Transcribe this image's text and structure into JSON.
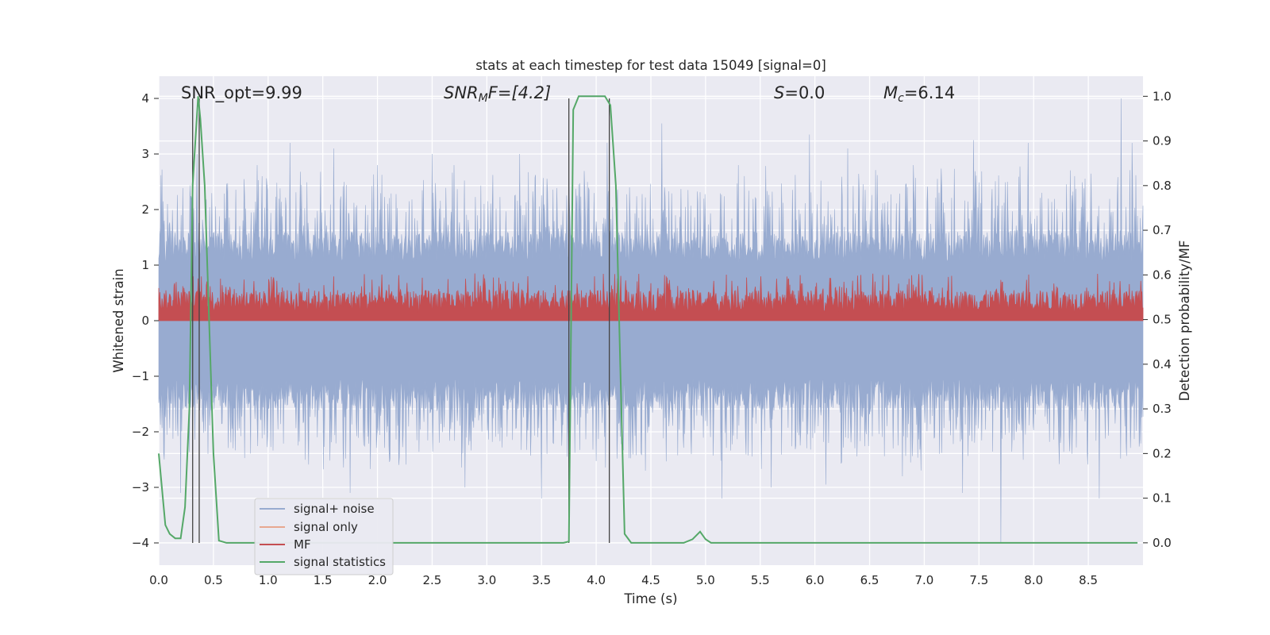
{
  "chart_data": {
    "type": "line",
    "title": "stats at each timestep for test data 15049 [signal=0]",
    "xlabel": "Time (s)",
    "ylabel": "Whitened strain",
    "y2label": "Detection probability/MF",
    "xlim": [
      0,
      9.0
    ],
    "ylim": [
      -4.4,
      4.4
    ],
    "y2lim": [
      -0.05,
      1.045
    ],
    "grid": true,
    "x_ticks": [
      "0.0",
      "0.5",
      "1.0",
      "1.5",
      "2.0",
      "2.5",
      "3.0",
      "3.5",
      "4.0",
      "4.5",
      "5.0",
      "5.5",
      "6.0",
      "6.5",
      "7.0",
      "7.5",
      "8.0",
      "8.5"
    ],
    "y_ticks": [
      "4",
      "3",
      "2",
      "1",
      "0",
      "−1",
      "−2",
      "−3",
      "−4"
    ],
    "y2_ticks": [
      "1.0",
      "0.9",
      "0.8",
      "0.7",
      "0.6",
      "0.5",
      "0.4",
      "0.3",
      "0.2",
      "0.1",
      "0.0"
    ],
    "annotations": {
      "snr_opt": "SNR_opt=9.99",
      "snr_mf_base": "SNR",
      "snr_mf_sub": "M",
      "snr_mf_rest": "F=[4.2]",
      "s_italic": "S",
      "s_rest": "=0.0",
      "mc_base": "M",
      "mc_sub": "c",
      "mc_rest": "=6.14"
    },
    "legend": {
      "position": "lower-left",
      "entries": [
        {
          "label": "signal+ noise",
          "color": "#98abd0"
        },
        {
          "label": "signal only",
          "color": "#e8a890"
        },
        {
          "label": "MF",
          "color": "#c44e52"
        },
        {
          "label": "signal statistics",
          "color": "#55a868"
        }
      ]
    },
    "noise_band": {
      "typical_upper": 1.6,
      "typical_lower": -1.6,
      "dense_upper": 0.8,
      "dense_lower": -0.8,
      "spikes_up": [
        [
          0.05,
          1.8
        ],
        [
          0.08,
          2.1
        ],
        [
          0.3,
          2.2
        ],
        [
          0.35,
          3.0
        ],
        [
          0.9,
          2.8
        ],
        [
          1.2,
          3.2
        ],
        [
          1.6,
          3.1
        ],
        [
          2.0,
          2.8
        ],
        [
          2.5,
          3.0
        ],
        [
          2.7,
          2.8
        ],
        [
          3.3,
          3.0
        ],
        [
          4.1,
          3.2
        ],
        [
          4.6,
          3.55
        ],
        [
          5.3,
          2.8
        ],
        [
          5.95,
          3.35
        ],
        [
          6.3,
          3.1
        ],
        [
          6.9,
          2.8
        ],
        [
          7.45,
          3.25
        ],
        [
          7.95,
          3.2
        ],
        [
          8.8,
          4.0
        ],
        [
          8.9,
          3.2
        ]
      ],
      "spikes_down": [
        [
          0.05,
          -2.5
        ],
        [
          0.2,
          -3.1
        ],
        [
          1.75,
          -3.1
        ],
        [
          2.8,
          -3.0
        ],
        [
          3.5,
          -3.2
        ],
        [
          4.45,
          -2.7
        ],
        [
          5.15,
          -3.2
        ],
        [
          5.6,
          -3.0
        ],
        [
          6.1,
          -2.95
        ],
        [
          6.8,
          -2.8
        ],
        [
          7.35,
          -3.1
        ],
        [
          7.7,
          -4.0
        ],
        [
          8.6,
          -3.2
        ]
      ]
    },
    "mf_band": {
      "typical_upper": 0.55,
      "max": 0.85,
      "base": 0.0
    },
    "vlines": [
      0.31,
      0.37,
      3.75,
      4.12
    ],
    "series": [
      {
        "name": "signal statistics",
        "axis": "right",
        "color": "#55a868",
        "x": [
          0.0,
          0.06,
          0.1,
          0.15,
          0.2,
          0.24,
          0.28,
          0.31,
          0.36,
          0.38,
          0.42,
          0.46,
          0.5,
          0.55,
          0.62,
          3.6,
          3.7,
          3.75,
          3.79,
          3.84,
          3.9,
          4.0,
          4.08,
          4.13,
          4.18,
          4.22,
          4.26,
          4.32,
          4.8,
          4.88,
          4.95,
          5.0,
          5.05,
          8.95
        ],
        "y": [
          0.2,
          0.04,
          0.02,
          0.01,
          0.01,
          0.08,
          0.3,
          0.8,
          1.0,
          0.95,
          0.8,
          0.5,
          0.2,
          0.005,
          0.0,
          0.0,
          0.0,
          0.003,
          0.97,
          1.0,
          1.0,
          1.0,
          1.0,
          0.98,
          0.8,
          0.4,
          0.02,
          0.0,
          0.0,
          0.008,
          0.025,
          0.008,
          0.0,
          0.0
        ]
      }
    ]
  }
}
